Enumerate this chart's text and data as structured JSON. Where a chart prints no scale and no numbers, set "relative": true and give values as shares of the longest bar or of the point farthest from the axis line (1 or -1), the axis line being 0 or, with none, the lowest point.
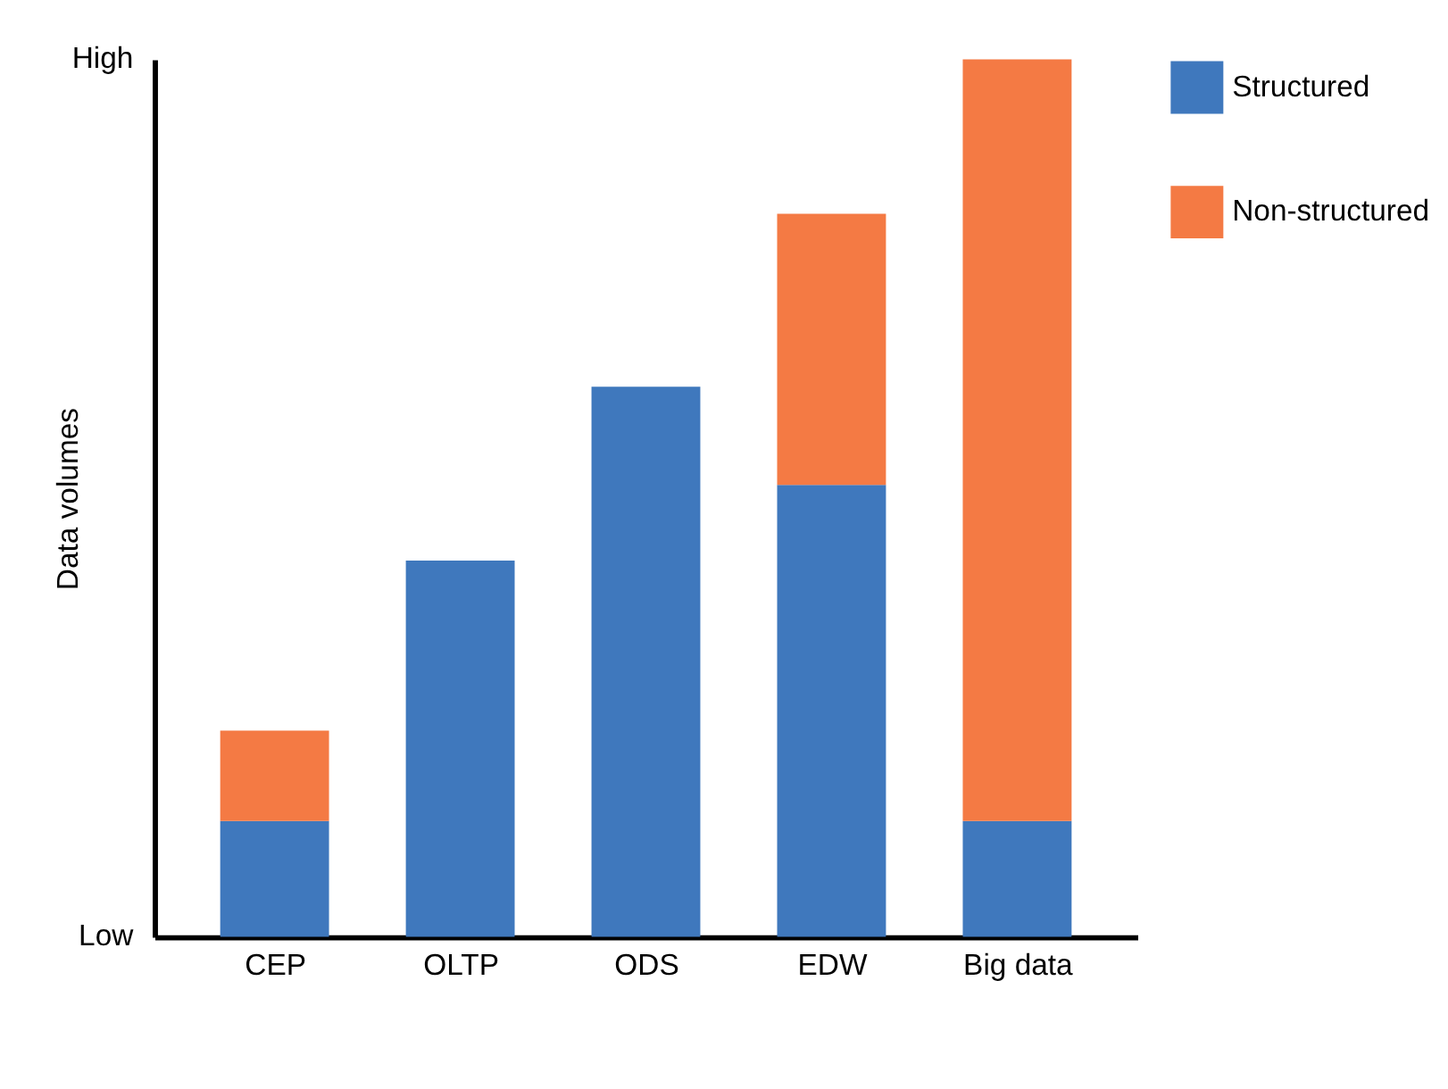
{
  "chart_data": {
    "type": "bar",
    "stacked": true,
    "relative": true,
    "ylabel": "Data volumes",
    "categories": [
      "CEP",
      "OLTP",
      "ODS",
      "EDW",
      "Big data"
    ],
    "series": [
      {
        "name": "Structured",
        "color": "#3f78bd",
        "values": [
          0.132,
          0.429,
          0.627,
          0.515,
          0.132
        ]
      },
      {
        "name": "Non-structured",
        "color": "#f47a44",
        "values": [
          0.103,
          null,
          null,
          0.309,
          0.868
        ]
      }
    ],
    "annotations": [
      "Low",
      "High"
    ],
    "legend": "right",
    "grid": false
  }
}
